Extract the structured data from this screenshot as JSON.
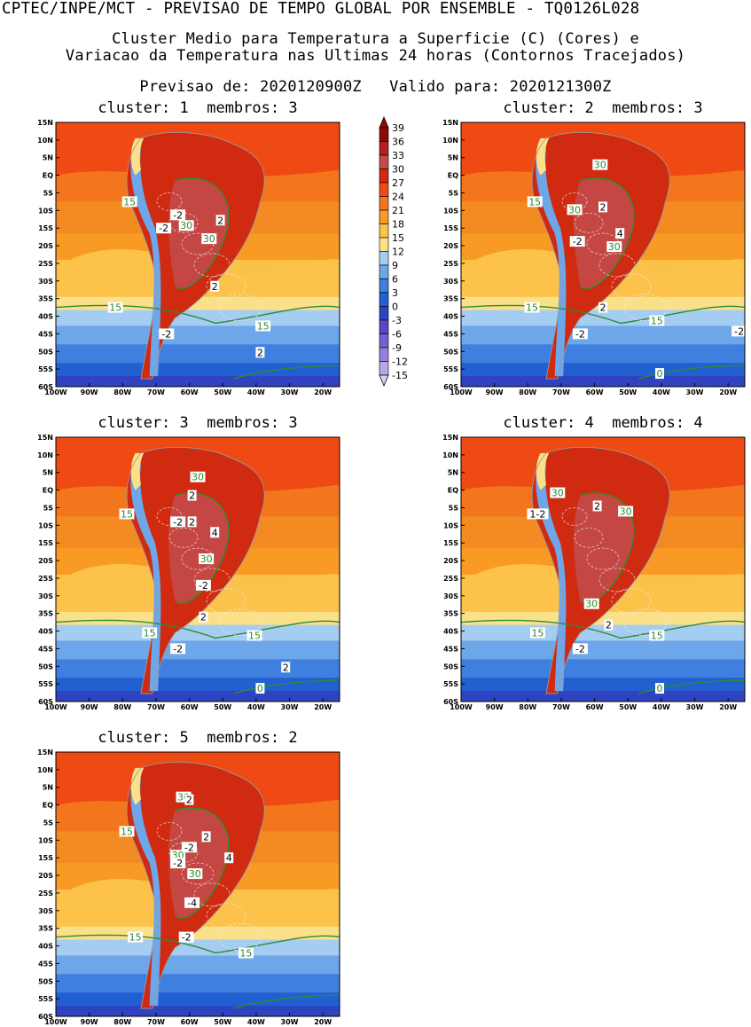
{
  "header": {
    "line1": "CPTEC/INPE/MCT - PREVISAO DE TEMPO GLOBAL POR ENSEMBLE - TQ0126L028",
    "line2": "Cluster Medio para Temperatura a Superficie (C) (Cores) e",
    "line3": "Variacao da Temperatura nas Ultimas 24 horas (Contornos Tracejados)",
    "line4": "Previsao de: 2020120900Z   Valido para: 2020121300Z"
  },
  "lat_labels": [
    "15N",
    "10N",
    "5N",
    "EQ",
    "5S",
    "10S",
    "15S",
    "20S",
    "25S",
    "30S",
    "35S",
    "40S",
    "45S",
    "50S",
    "55S",
    "60S"
  ],
  "lon_labels": [
    "100W",
    "90W",
    "80W",
    "70W",
    "60W",
    "50W",
    "40W",
    "30W",
    "20W"
  ],
  "colorbar": {
    "levels": [
      "39",
      "36",
      "33",
      "30",
      "27",
      "24",
      "21",
      "18",
      "15",
      "12",
      "9",
      "6",
      "3",
      "0",
      "-3",
      "-6",
      "-9",
      "-12",
      "-15"
    ],
    "colors": [
      "#8b0a0a",
      "#b41e1e",
      "#c24c4c",
      "#d02a10",
      "#ef4a14",
      "#f4761c",
      "#f99a24",
      "#fcc24a",
      "#fbe08a",
      "#a5ccf1",
      "#6ea6ea",
      "#3e7fe0",
      "#225fd0",
      "#2f42c0",
      "#5646c8",
      "#7460d2",
      "#9680dc",
      "#b8a6e6",
      "#dcd0f2"
    ]
  },
  "panels": [
    {
      "title": "cluster: 1  membros: 3",
      "labels": [
        {
          "t": "15",
          "c": "g"
        },
        {
          "t": "-2",
          "c": "w"
        },
        {
          "t": "-2",
          "c": "w"
        },
        {
          "t": "30",
          "c": "g"
        },
        {
          "t": "2",
          "c": "w"
        },
        {
          "t": "30",
          "c": "g"
        },
        {
          "t": "2",
          "c": "w"
        },
        {
          "t": "15",
          "c": "g"
        },
        {
          "t": "15",
          "c": "g"
        },
        {
          "t": "-2",
          "c": "w"
        },
        {
          "t": "2",
          "c": "w"
        }
      ]
    },
    {
      "title": "cluster: 2  membros: 3",
      "labels": [
        {
          "t": "30",
          "c": "g"
        },
        {
          "t": "15",
          "c": "g"
        },
        {
          "t": "30",
          "c": "g"
        },
        {
          "t": "2",
          "c": "w"
        },
        {
          "t": "-2",
          "c": "w"
        },
        {
          "t": "4",
          "c": "w"
        },
        {
          "t": "30",
          "c": "g"
        },
        {
          "t": "15",
          "c": "g"
        },
        {
          "t": "2",
          "c": "w"
        },
        {
          "t": "15",
          "c": "g"
        },
        {
          "t": "-2",
          "c": "w"
        },
        {
          "t": "-2",
          "c": "w"
        },
        {
          "t": "0",
          "c": "g"
        }
      ]
    },
    {
      "title": "cluster: 3  membros: 3",
      "labels": [
        {
          "t": "30",
          "c": "g"
        },
        {
          "t": "2",
          "c": "w"
        },
        {
          "t": "15",
          "c": "g"
        },
        {
          "t": "-2",
          "c": "w"
        },
        {
          "t": "2",
          "c": "w"
        },
        {
          "t": "4",
          "c": "w"
        },
        {
          "t": "30",
          "c": "g"
        },
        {
          "t": "-2",
          "c": "w"
        },
        {
          "t": "2",
          "c": "w"
        },
        {
          "t": "15",
          "c": "g"
        },
        {
          "t": "15",
          "c": "g"
        },
        {
          "t": "-2",
          "c": "w"
        },
        {
          "t": "2",
          "c": "w"
        },
        {
          "t": "0",
          "c": "g"
        }
      ]
    },
    {
      "title": "cluster: 4  membros: 4",
      "labels": [
        {
          "t": "30",
          "c": "g"
        },
        {
          "t": "2",
          "c": "w"
        },
        {
          "t": "30",
          "c": "g"
        },
        {
          "t": "1-2",
          "c": "w"
        },
        {
          "t": "30",
          "c": "g"
        },
        {
          "t": "2",
          "c": "w"
        },
        {
          "t": "15",
          "c": "g"
        },
        {
          "t": "15",
          "c": "g"
        },
        {
          "t": "-2",
          "c": "w"
        },
        {
          "t": "0",
          "c": "g"
        }
      ]
    },
    {
      "title": "cluster: 5  membros: 2",
      "labels": [
        {
          "t": "30",
          "c": "g"
        },
        {
          "t": "2",
          "c": "w"
        },
        {
          "t": "15",
          "c": "g"
        },
        {
          "t": "2",
          "c": "w"
        },
        {
          "t": "-2",
          "c": "w"
        },
        {
          "t": "30",
          "c": "g"
        },
        {
          "t": "-2",
          "c": "w"
        },
        {
          "t": "4",
          "c": "w"
        },
        {
          "t": "30",
          "c": "g"
        },
        {
          "t": "-4",
          "c": "w"
        },
        {
          "t": "15",
          "c": "g"
        },
        {
          "t": "-2",
          "c": "w"
        },
        {
          "t": "15",
          "c": "g"
        }
      ]
    }
  ]
}
